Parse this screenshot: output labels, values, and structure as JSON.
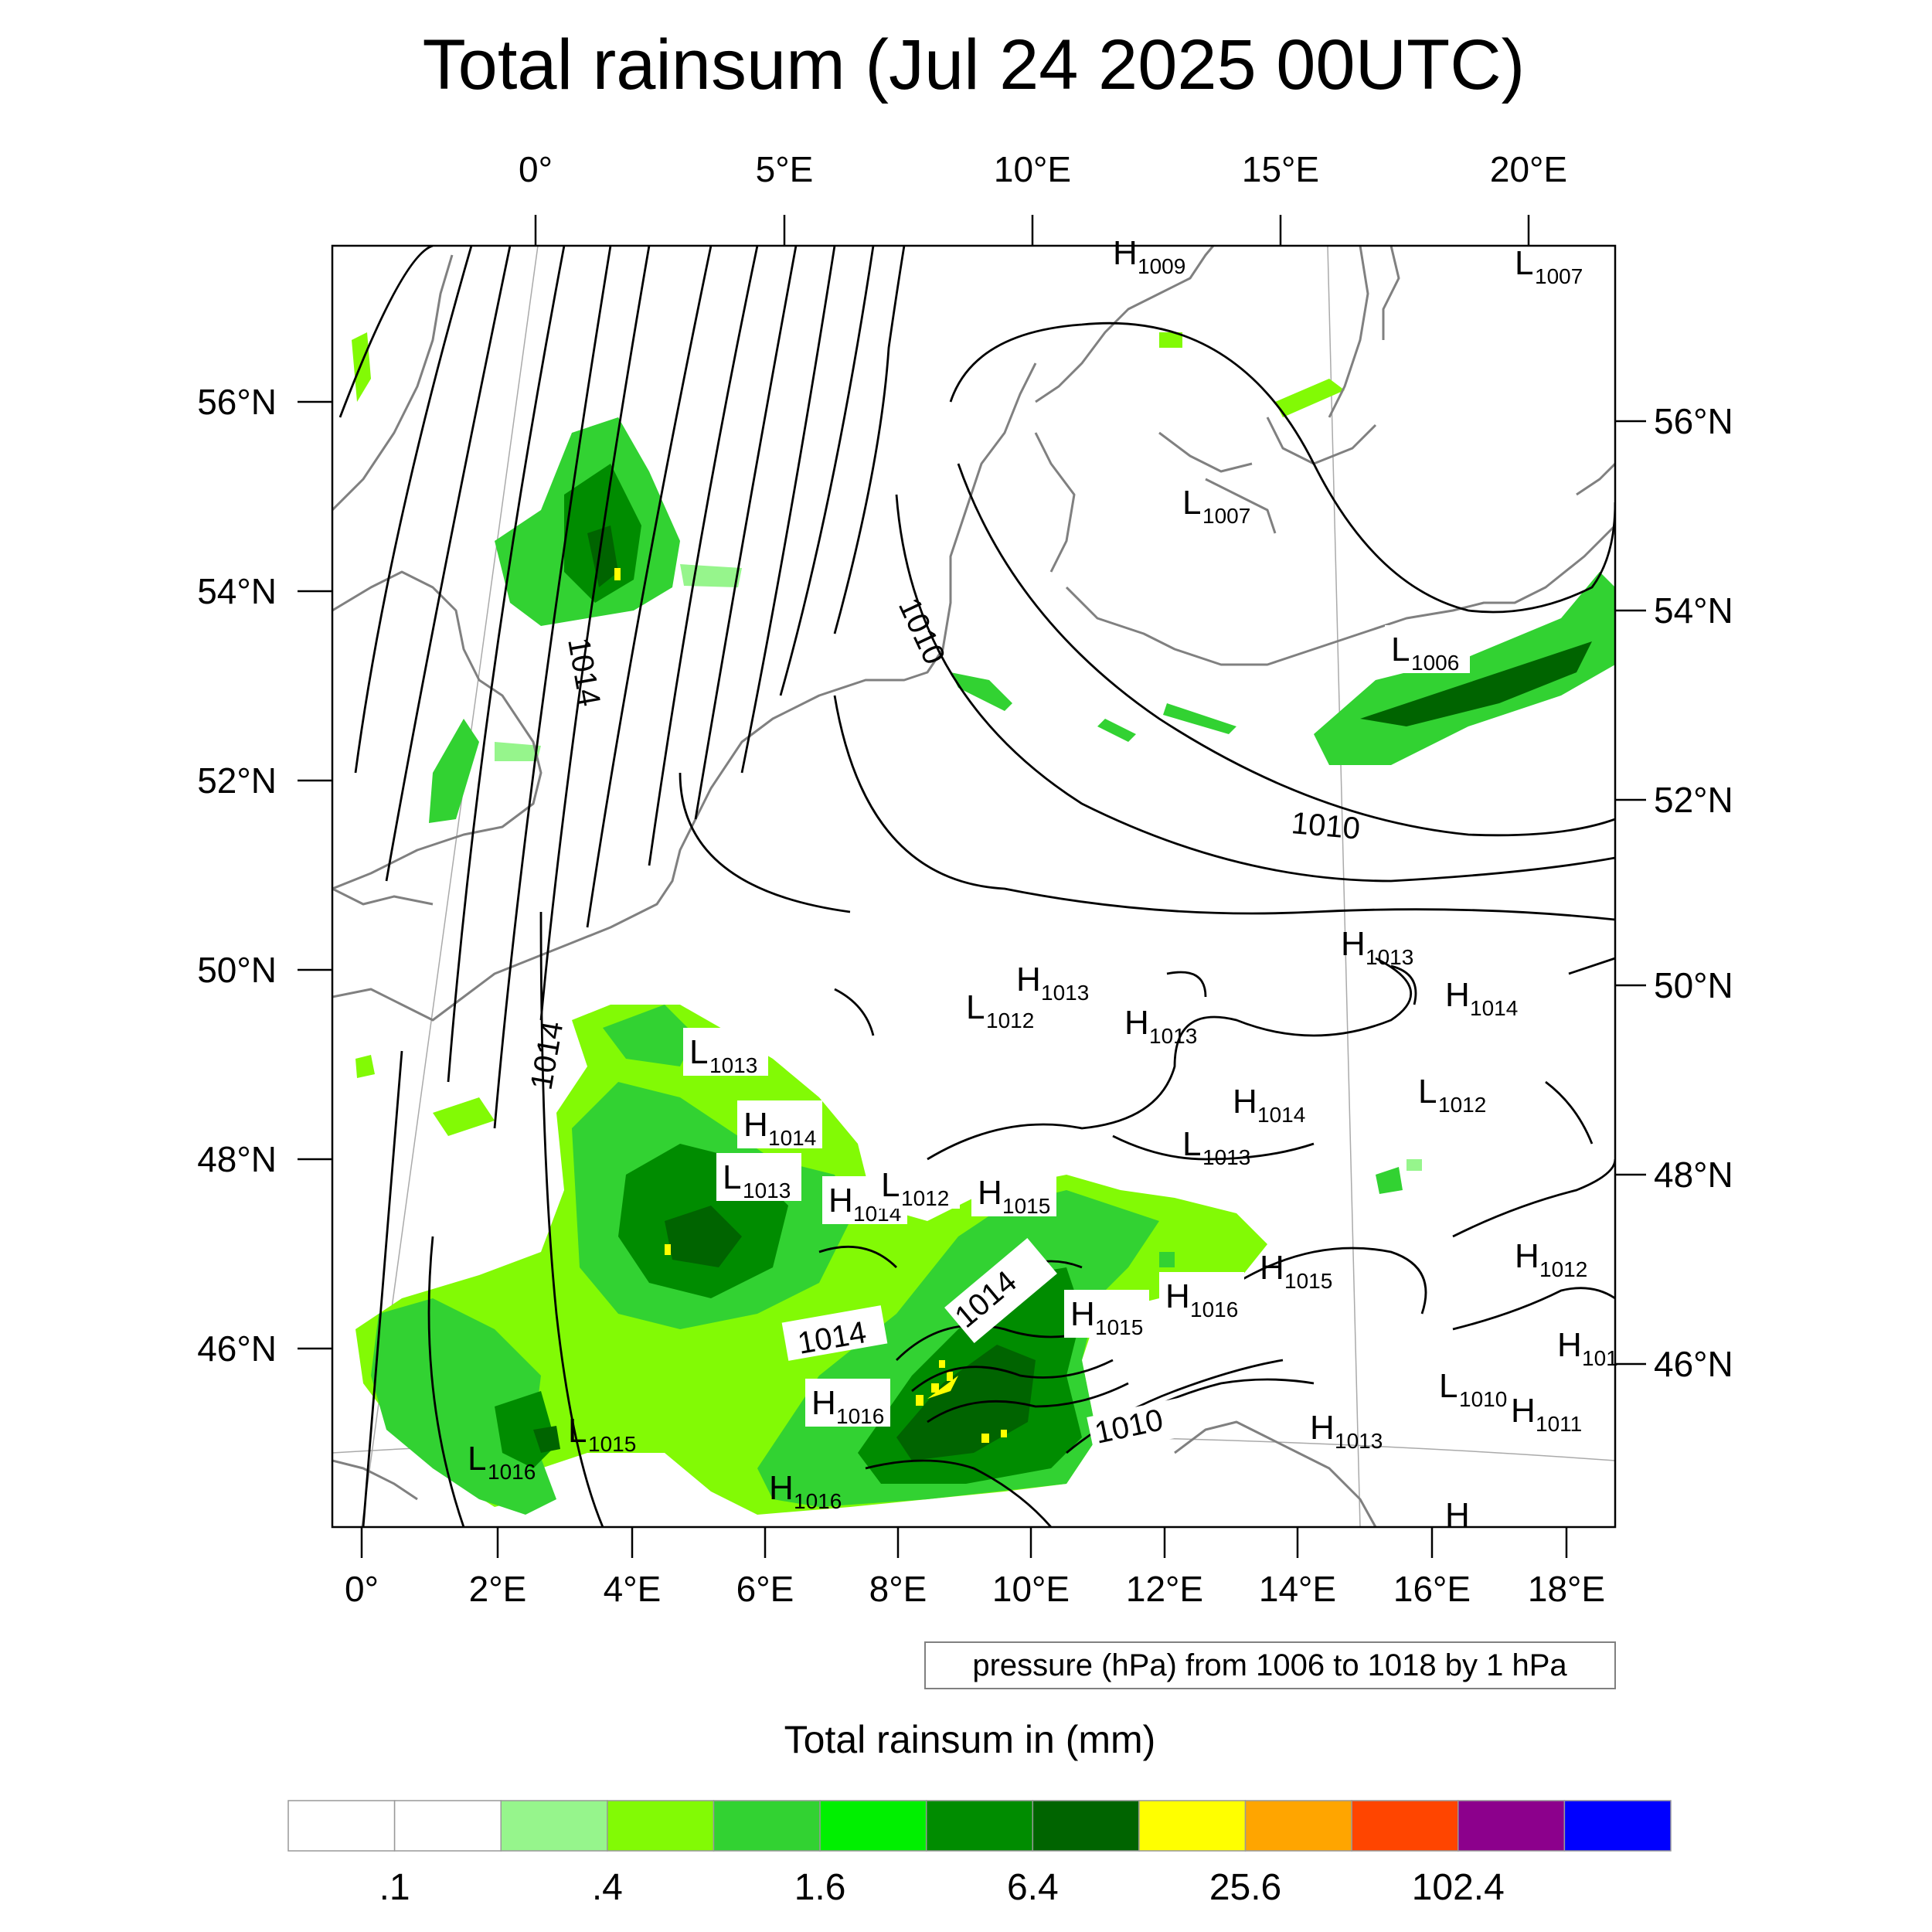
{
  "title": "Total rainsum (Jul 24 2025 00UTC)",
  "top_lon_labels": [
    "0°",
    "5°E",
    "10°E",
    "15°E",
    "20°E"
  ],
  "left_lat_labels": [
    "56°N",
    "54°N",
    "52°N",
    "50°N",
    "48°N",
    "46°N"
  ],
  "right_lat_labels": [
    "56°N",
    "54°N",
    "52°N",
    "50°N",
    "48°N",
    "46°N"
  ],
  "bottom_lon_labels": [
    "0°",
    "2°E",
    "4°E",
    "6°E",
    "8°E",
    "10°E",
    "12°E",
    "14°E",
    "16°E",
    "18°E"
  ],
  "contour_labels": [
    "1014",
    "1010",
    "1014",
    "1010",
    "1014",
    "1014",
    "1010"
  ],
  "pressure_centers": [
    {
      "t": "H",
      "v": "1009"
    },
    {
      "t": "L",
      "v": "1007"
    },
    {
      "t": "L",
      "v": "1007"
    },
    {
      "t": "L",
      "v": "1006"
    },
    {
      "t": "H",
      "v": "1013"
    },
    {
      "t": "H",
      "v": "1014"
    },
    {
      "t": "L",
      "v": "1012"
    },
    {
      "t": "H",
      "v": "1013"
    },
    {
      "t": "H",
      "v": "1013"
    },
    {
      "t": "L",
      "v": "1012"
    },
    {
      "t": "L",
      "v": "1013"
    },
    {
      "t": "H",
      "v": "1014"
    },
    {
      "t": "L",
      "v": "1013"
    },
    {
      "t": "H",
      "v": "1014"
    },
    {
      "t": "L",
      "v": "1013"
    },
    {
      "t": "H",
      "v": "1014"
    },
    {
      "t": "L",
      "v": "1012"
    },
    {
      "t": "H",
      "v": "1015"
    },
    {
      "t": "H",
      "v": "1012"
    },
    {
      "t": "H",
      "v": "1015"
    },
    {
      "t": "H",
      "v": "1016"
    },
    {
      "t": "H",
      "v": "1015"
    },
    {
      "t": "H",
      "v": "101"
    },
    {
      "t": "L",
      "v": "1010"
    },
    {
      "t": "H",
      "v": "1011"
    },
    {
      "t": "H",
      "v": "1016"
    },
    {
      "t": "H",
      "v": "1013"
    },
    {
      "t": "L",
      "v": "1015"
    },
    {
      "t": "L",
      "v": "1016"
    },
    {
      "t": "H",
      "v": "1016"
    },
    {
      "t": "H",
      "v": ""
    }
  ],
  "contour_info": "pressure (hPa) from 1006 to 1018 by 1 hPa",
  "colorbar": {
    "title": "Total rainsum in (mm)",
    "colors": [
      "#ffffff",
      "#ffffff",
      "#96f58c",
      "#82fa05",
      "#32d232",
      "#00f000",
      "#008c00",
      "#006400",
      "#ffff00",
      "#ffa500",
      "#ff4500",
      "#8c008c",
      "#0000ff"
    ],
    "tick_labels": [
      ".1",
      ".4",
      "1.6",
      "6.4",
      "25.6",
      "102.4"
    ]
  }
}
